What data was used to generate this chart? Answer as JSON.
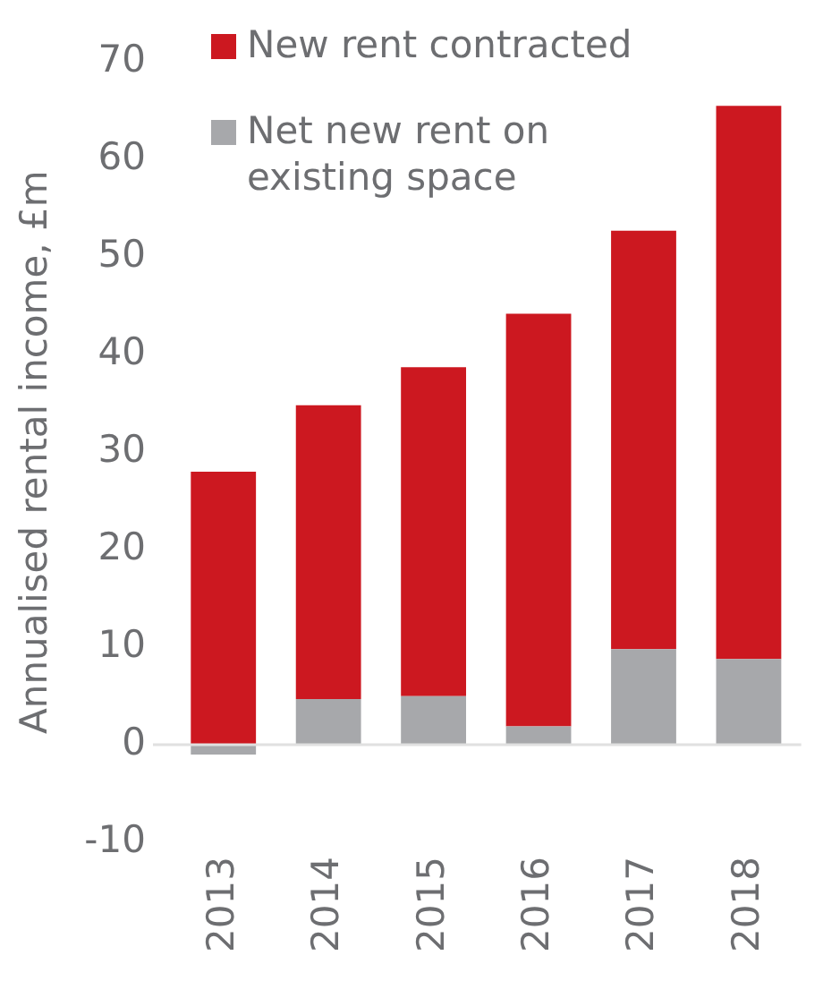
{
  "chart_data": {
    "type": "bar",
    "ylabel": "Annualised rental income, £m",
    "categories": [
      "2013",
      "2014",
      "2015",
      "2016",
      "2017",
      "2018"
    ],
    "stacked": true,
    "ylim": [
      -10,
      70
    ],
    "yticks": [
      -10,
      0,
      10,
      20,
      30,
      40,
      50,
      60,
      70
    ],
    "grid": false,
    "legend": "top left",
    "ref_lines": [
      {
        "axis": "y",
        "value": 0,
        "color": "#e0e0e0"
      }
    ],
    "series": [
      {
        "name": "Net new rent on existing space",
        "color": "#a7a8ab",
        "values": [
          -1.0,
          4.7,
          5.0,
          1.9,
          9.8,
          8.8
        ]
      },
      {
        "name": "New rent contracted",
        "color": "#cc1820",
        "values": [
          28.0,
          30.1,
          33.7,
          42.3,
          42.9,
          56.7
        ]
      }
    ]
  }
}
